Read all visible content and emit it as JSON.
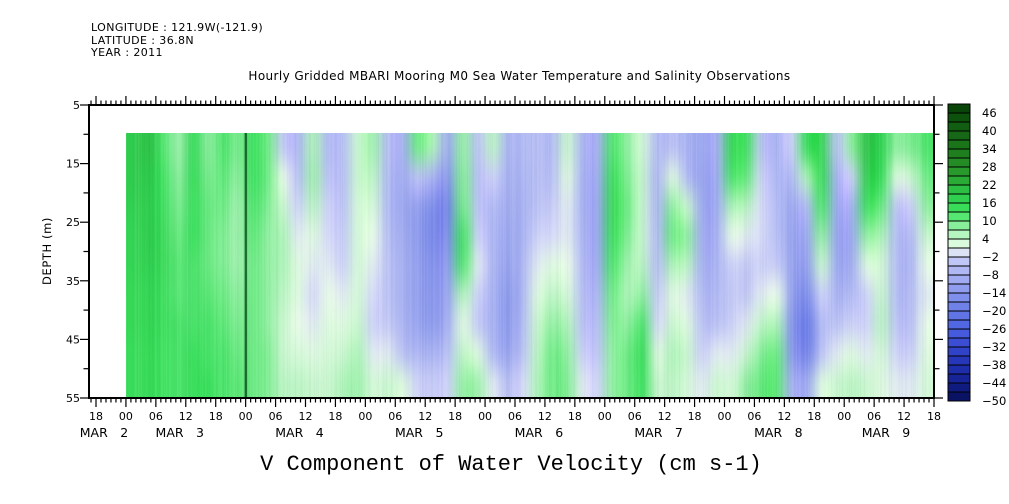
{
  "header": {
    "line1": "LONGITUDE : 121.9W(-121.9)",
    "line2": "LATITUDE : 36.8N",
    "line3": "YEAR : 2011"
  },
  "title": "Hourly Gridded MBARI Mooring M0 Sea Water Temperature and Salinity Observations",
  "axis": {
    "ylabel": "DEPTH (m)",
    "xlabel": "V Component of Water Velocity (cm s-1)",
    "depth_tick_labels": [
      "5",
      "15",
      "25",
      "35",
      "45",
      "55"
    ],
    "hour_label_cycle": [
      "18",
      "00",
      "06",
      "12"
    ],
    "hour_label_count": 29,
    "date_labels": [
      "MAR 2",
      "MAR 3",
      "MAR 4",
      "MAR 5",
      "MAR 6",
      "MAR 7",
      "MAR 8",
      "MAR 9"
    ]
  },
  "colorbar": {
    "labels": [
      46,
      40,
      34,
      28,
      22,
      16,
      10,
      4,
      -2,
      -8,
      -14,
      -20,
      -26,
      -32,
      -38,
      -44,
      -50
    ],
    "vmin": -50,
    "vmax": 49,
    "cell_step": 3
  },
  "chart_data": {
    "type": "heatmap",
    "title": "Hourly Gridded MBARI Mooring M0 Sea Water Temperature and Salinity Observations",
    "xlabel": "V Component of Water Velocity (cm s-1)",
    "ylabel": "DEPTH (m)",
    "x_range": "MAR 2 18:00 to MAR 9 18:00, 2011 (ticks every 6 h, minor every 1 h)",
    "depth_range_m": [
      5,
      55
    ],
    "data_region": {
      "time_start": "Mar 3 00:00",
      "time_end": "Mar 9 18:00",
      "depth_top_m": 10,
      "depth_bottom_m": 55
    },
    "dark_vertical_line_at": "Mar 4 00:00",
    "units": "cm s-1",
    "colormap_stops": [
      [
        -50,
        "#070f55"
      ],
      [
        -44,
        "#131f8e"
      ],
      [
        -38,
        "#2231b2"
      ],
      [
        -32,
        "#3447cf"
      ],
      [
        -26,
        "#4a60e0"
      ],
      [
        -20,
        "#687ae6"
      ],
      [
        -14,
        "#8896ec"
      ],
      [
        -8,
        "#a8b2f2"
      ],
      [
        -4,
        "#bcc3f5"
      ],
      [
        -1,
        "#d6daf9"
      ],
      [
        1,
        "#e9fce9"
      ],
      [
        4,
        "#c9f7cf"
      ],
      [
        7,
        "#a0f2ae"
      ],
      [
        10,
        "#6dec84"
      ],
      [
        13,
        "#3ce25e"
      ],
      [
        19,
        "#2cc94a"
      ],
      [
        25,
        "#29a12e"
      ],
      [
        31,
        "#218521"
      ],
      [
        37,
        "#186e18"
      ],
      [
        43,
        "#0e570e"
      ],
      [
        49,
        "#073d07"
      ]
    ],
    "grid": {
      "t0_hours_after_axis_start": 6,
      "dt_hours": 3,
      "n_cols": 54,
      "n_rows": 9,
      "depths_m": [
        10,
        15,
        20,
        25,
        30,
        35,
        40,
        45,
        50,
        55
      ],
      "values": [
        [
          18,
          20,
          12,
          7,
          14,
          8,
          12,
          9,
          13,
          10,
          -3,
          -7,
          6,
          -6,
          -5,
          4,
          7,
          -5,
          -8,
          10,
          6,
          -10,
          8,
          -4,
          5,
          -7,
          -6,
          -5,
          -6,
          4,
          -7,
          -9,
          12,
          8,
          3,
          -6,
          -4,
          -8,
          -10,
          -9,
          15,
          12,
          -4,
          -8,
          -2,
          14,
          16,
          -4,
          8,
          20,
          16,
          8,
          9,
          12
        ],
        [
          18,
          19,
          13,
          8,
          14,
          9,
          11,
          8,
          13,
          10,
          1,
          -5,
          7,
          -4,
          -5,
          4,
          5,
          -6,
          -9,
          -4,
          -8,
          -14,
          9,
          -5,
          -2,
          -8,
          -7,
          -5,
          -5,
          2,
          -8,
          -10,
          14,
          9,
          4,
          -7,
          2,
          -6,
          -11,
          -10,
          12,
          10,
          -2,
          -7,
          -6,
          6,
          15,
          -8,
          -2,
          18,
          14,
          2,
          4,
          10
        ],
        [
          17,
          18,
          14,
          9,
          13,
          10,
          10,
          7,
          12,
          9,
          4,
          -2,
          5,
          -2,
          -4,
          3,
          3,
          -6,
          -10,
          -12,
          -16,
          -18,
          10,
          -4,
          -6,
          -9,
          -8,
          -4,
          -3,
          0,
          -8,
          -11,
          15,
          10,
          4,
          -7,
          8,
          4,
          -10,
          -10,
          6,
          5,
          -1,
          -6,
          -10,
          -6,
          12,
          -10,
          -8,
          14,
          10,
          -4,
          -2,
          8
        ],
        [
          16,
          18,
          15,
          10,
          13,
          10,
          9,
          7,
          11,
          8,
          6,
          0,
          2,
          -1,
          -3,
          3,
          1,
          -5,
          -9,
          -13,
          -17,
          -16,
          13,
          -2,
          -7,
          -10,
          -8,
          -2,
          -1,
          0,
          -7,
          -11,
          14,
          9,
          4,
          -6,
          10,
          8,
          -9,
          -9,
          1,
          0,
          -1,
          -5,
          -11,
          -10,
          8,
          -11,
          -10,
          8,
          6,
          -6,
          -5,
          4
        ],
        [
          16,
          17,
          15,
          11,
          12,
          10,
          9,
          7,
          10,
          8,
          6,
          2,
          0,
          0,
          -2,
          3,
          0,
          -4,
          -8,
          -12,
          -15,
          -13,
          12,
          0,
          -7,
          -11,
          -7,
          0,
          2,
          1,
          -6,
          -10,
          12,
          7,
          5,
          -5,
          6,
          5,
          -8,
          -8,
          -2,
          -3,
          -2,
          -3,
          -11,
          -12,
          4,
          -10,
          -9,
          2,
          3,
          -6,
          -6,
          1
        ],
        [
          15,
          16,
          14,
          11,
          12,
          11,
          10,
          8,
          10,
          8,
          5,
          2,
          -1,
          1,
          0,
          3,
          -1,
          -4,
          -8,
          -12,
          -14,
          -11,
          6,
          -2,
          -8,
          -13,
          -7,
          2,
          5,
          3,
          -5,
          -8,
          10,
          6,
          8,
          -3,
          2,
          0,
          -6,
          -7,
          -3,
          -3,
          0,
          1,
          -12,
          -16,
          -2,
          -8,
          -6,
          -2,
          4,
          -6,
          -5,
          0
        ],
        [
          15,
          16,
          14,
          12,
          12,
          12,
          11,
          9,
          10,
          8,
          4,
          1,
          0,
          2,
          2,
          4,
          -2,
          -3,
          -7,
          -11,
          -13,
          -9,
          2,
          -3,
          -8,
          -13,
          -6,
          4,
          8,
          6,
          -4,
          -6,
          9,
          8,
          12,
          -1,
          4,
          2,
          -4,
          -5,
          -2,
          0,
          5,
          6,
          -14,
          -20,
          -6,
          -4,
          -2,
          -2,
          5,
          -4,
          -4,
          1
        ],
        [
          14,
          15,
          13,
          12,
          13,
          12,
          12,
          10,
          10,
          9,
          4,
          3,
          2,
          3,
          4,
          6,
          0,
          0,
          -4,
          -7,
          -8,
          -5,
          5,
          2,
          -6,
          -11,
          -4,
          5,
          10,
          8,
          -2,
          -4,
          8,
          10,
          14,
          2,
          6,
          4,
          -2,
          0,
          0,
          4,
          9,
          10,
          -13,
          -18,
          -4,
          0,
          2,
          0,
          3,
          -2,
          -2,
          2
        ],
        [
          14,
          15,
          13,
          12,
          13,
          13,
          12,
          11,
          10,
          9,
          5,
          5,
          4,
          4,
          6,
          7,
          3,
          4,
          2,
          -2,
          -3,
          -2,
          8,
          7,
          0,
          -5,
          -1,
          6,
          10,
          9,
          0,
          -2,
          8,
          10,
          13,
          4,
          5,
          3,
          0,
          4,
          3,
          8,
          11,
          11,
          -8,
          -10,
          2,
          4,
          5,
          4,
          2,
          0,
          0,
          3
        ]
      ]
    }
  }
}
